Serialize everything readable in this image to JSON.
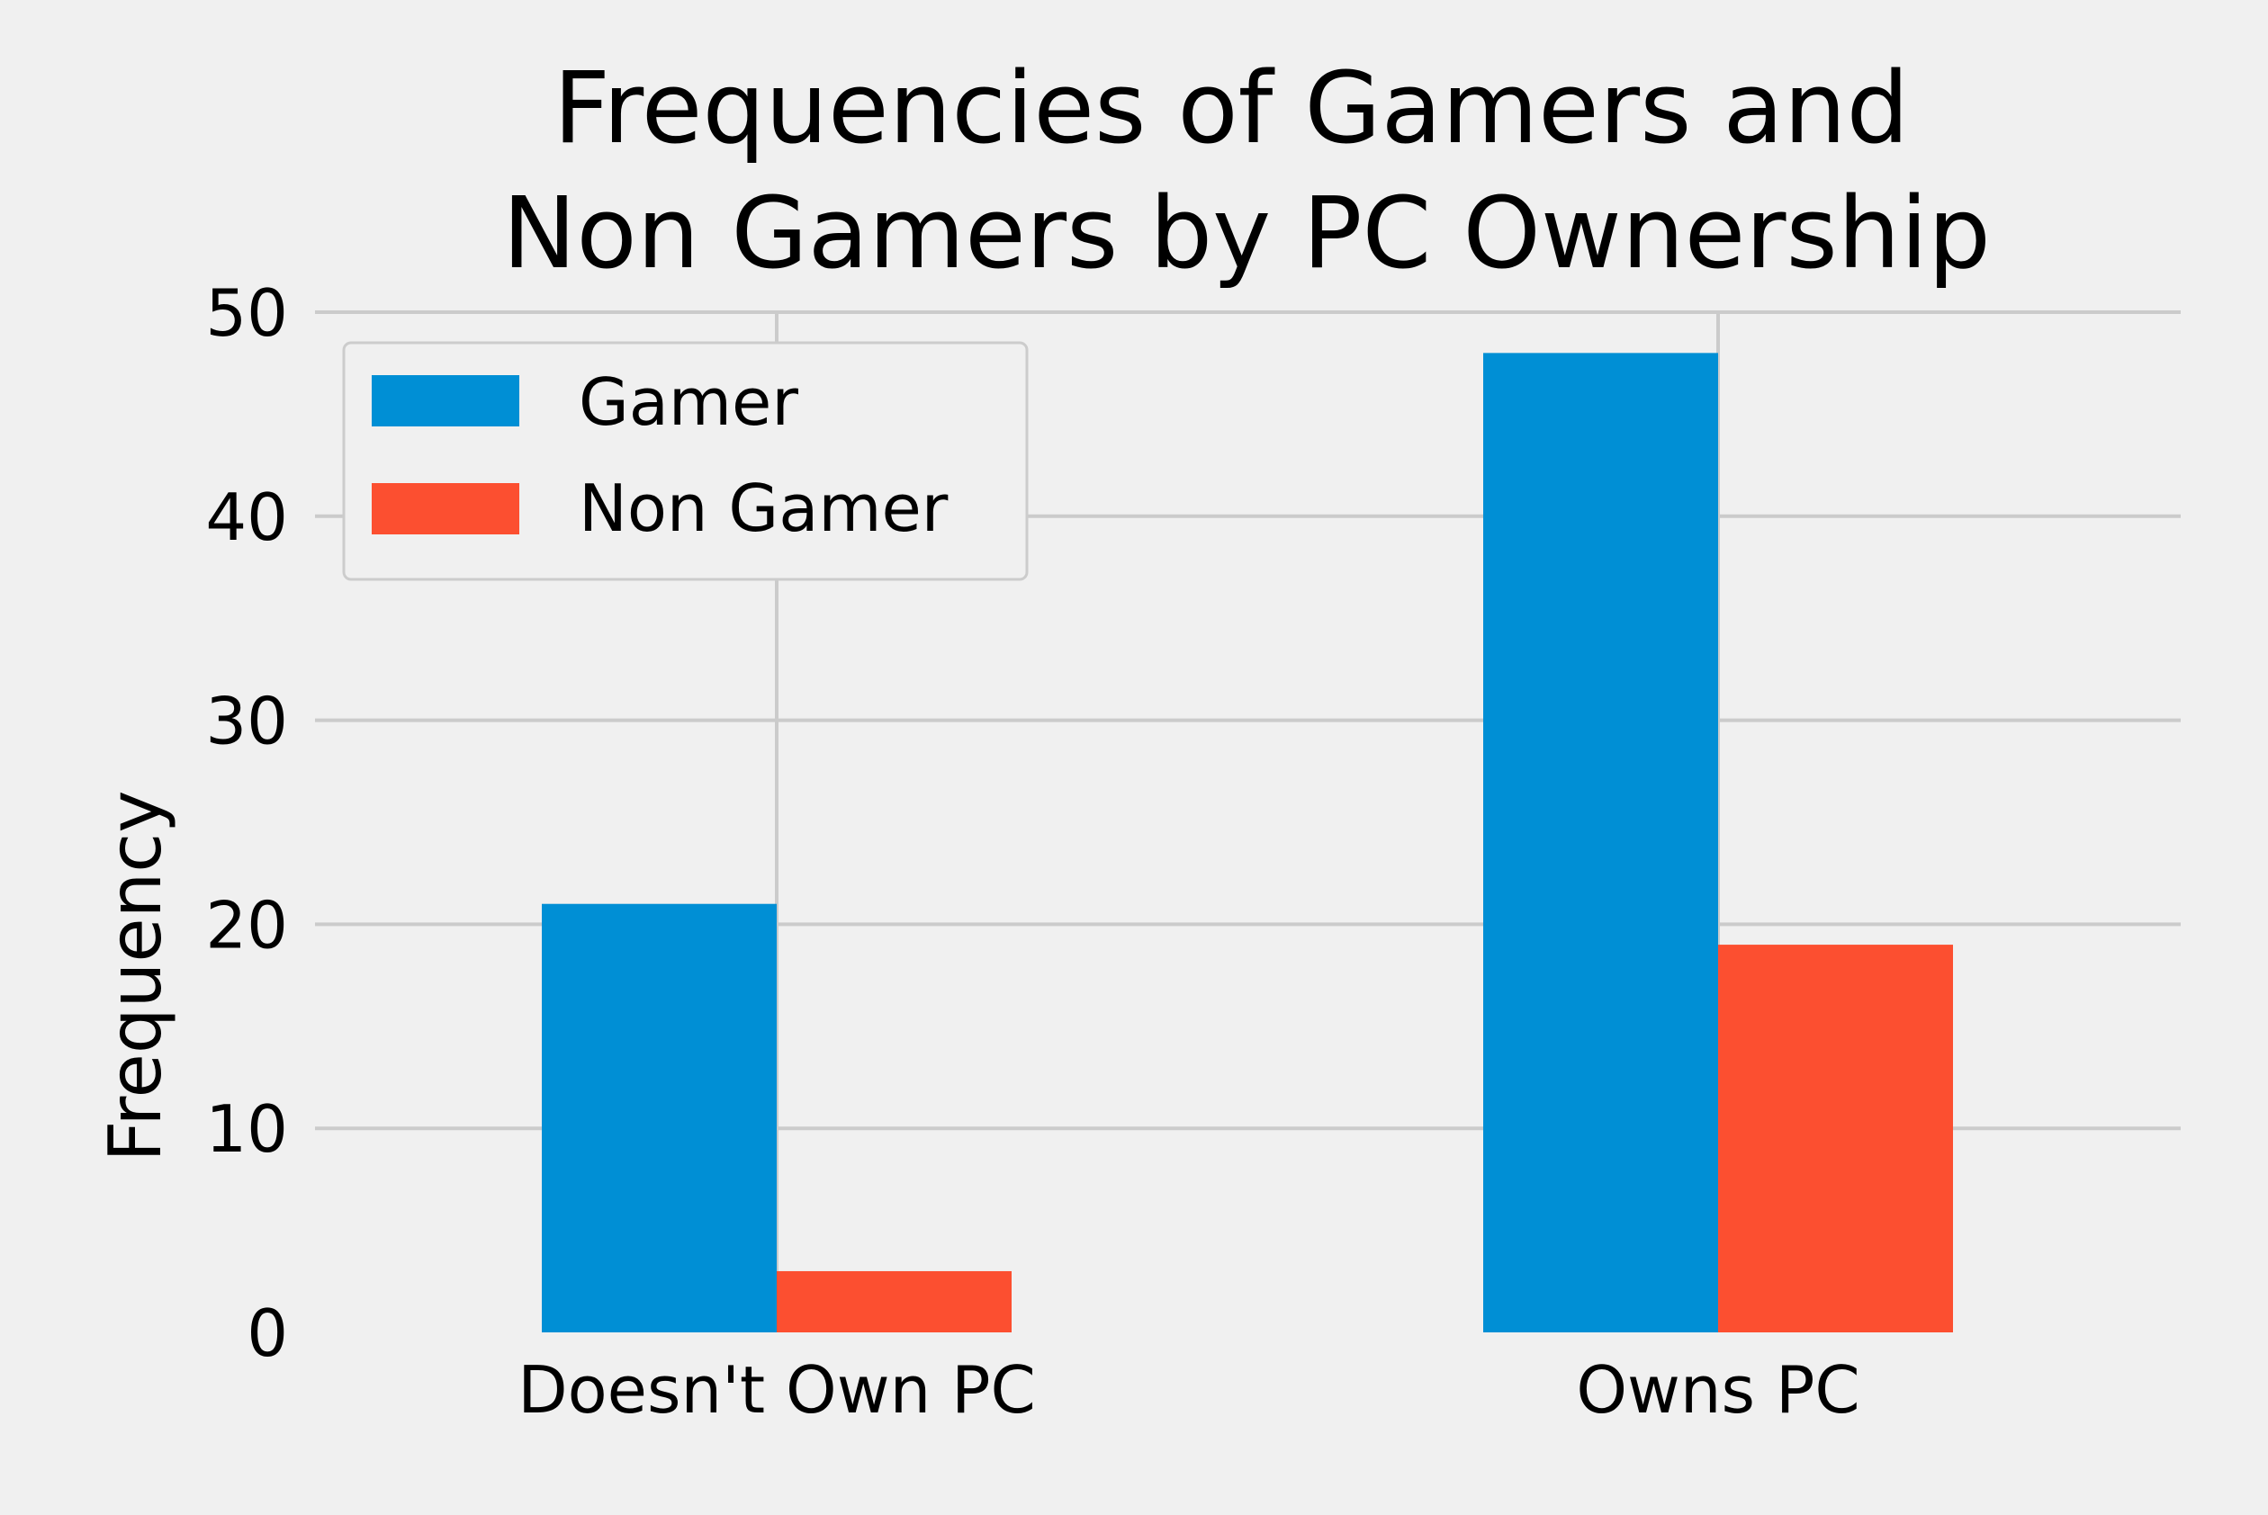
{
  "chart_data": {
    "type": "bar",
    "title_lines": [
      "Frequencies of Gamers and",
      "Non Gamers by PC Ownership"
    ],
    "xlabel": "",
    "ylabel": "Frequency",
    "categories": [
      "Doesn't Own PC",
      "Owns PC"
    ],
    "series": [
      {
        "name": "Gamer",
        "values": [
          21,
          48
        ],
        "color": "#008fd5"
      },
      {
        "name": "Non Gamer",
        "values": [
          3,
          19
        ],
        "color": "#fc4f30"
      }
    ],
    "ylim": [
      0,
      50
    ],
    "yticks": [
      0,
      10,
      20,
      30,
      40,
      50
    ],
    "grid": true,
    "legend_position": "top-left"
  }
}
